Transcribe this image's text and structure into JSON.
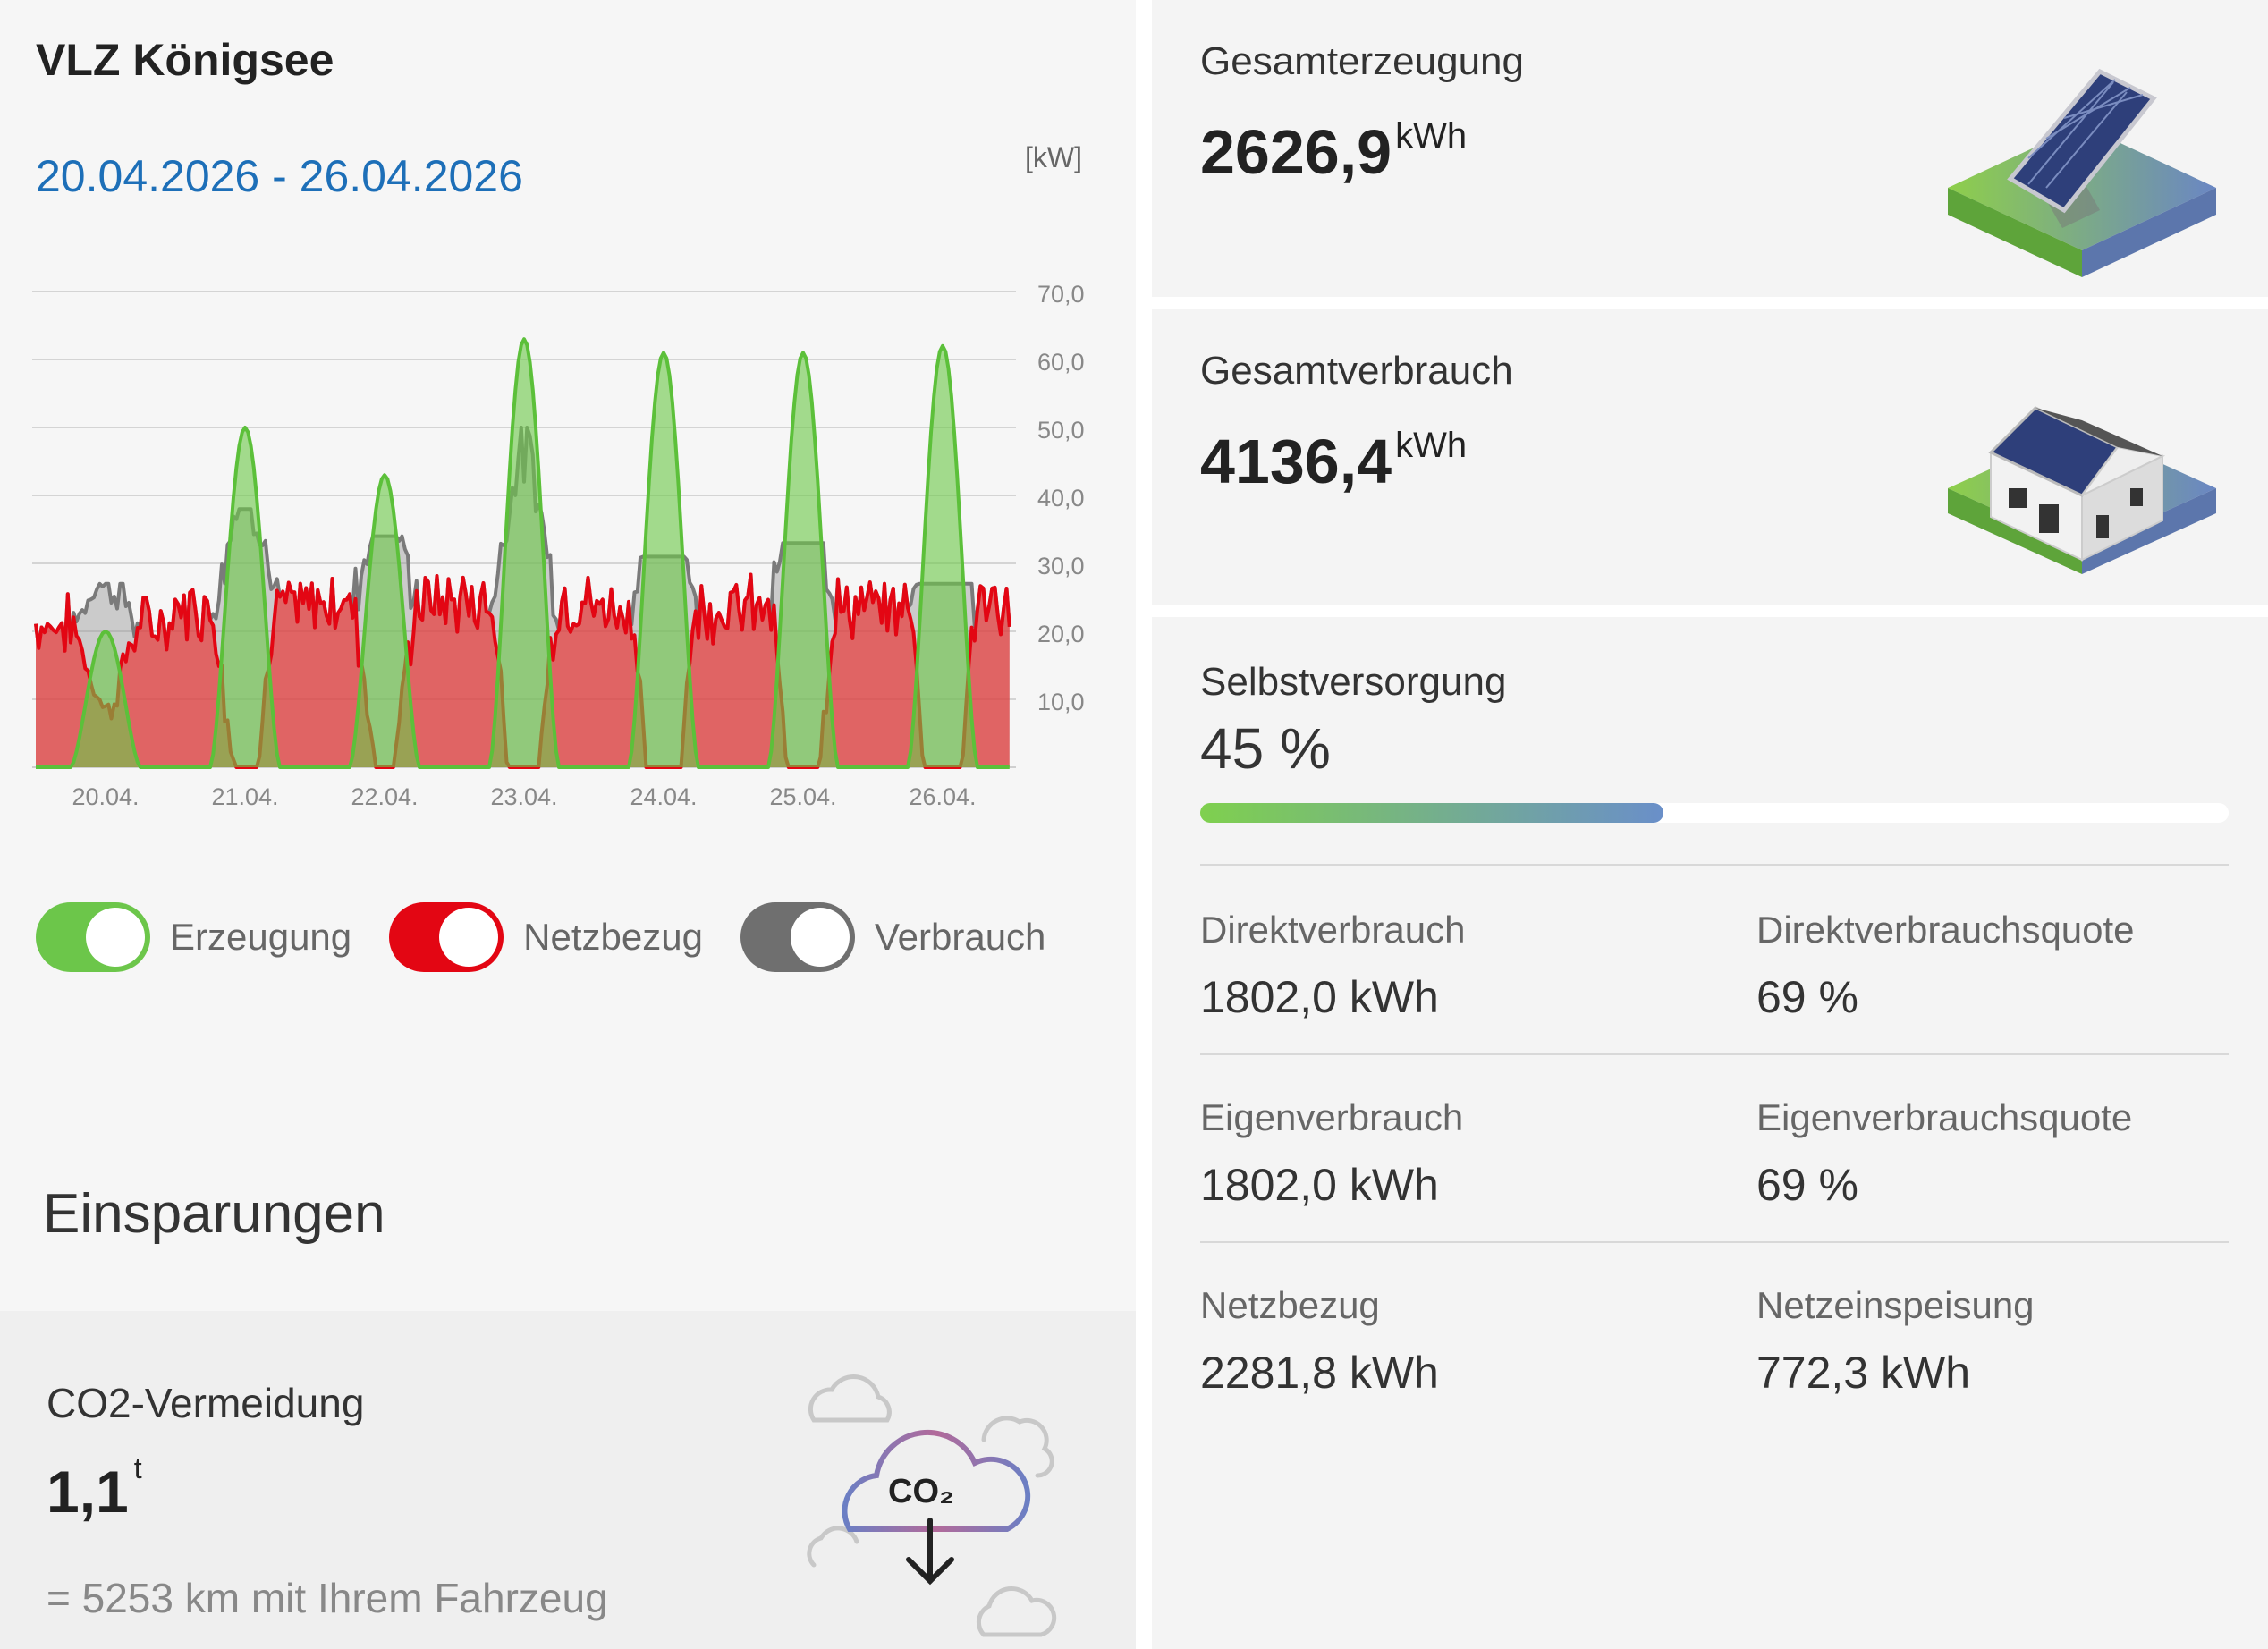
{
  "site": {
    "title": "VLZ Königsee"
  },
  "chart": {
    "date_range": "20.04.2026 - 26.04.2026",
    "unit": "[kW]",
    "y_ticks": [
      "70,0",
      "60,0",
      "50,0",
      "40,0",
      "30,0",
      "20,0",
      "10,0"
    ],
    "x_ticks": [
      "20.04.",
      "21.04.",
      "22.04.",
      "23.04.",
      "24.04.",
      "25.04.",
      "26.04."
    ]
  },
  "chart_data": {
    "type": "area",
    "title": "",
    "xlabel": "",
    "ylabel": "[kW]",
    "ylim": [
      0,
      70
    ],
    "categories": [
      "20.04.",
      "21.04.",
      "22.04.",
      "23.04.",
      "24.04.",
      "25.04.",
      "26.04."
    ],
    "legend": [
      "Erzeugung",
      "Netzbezug",
      "Verbrauch"
    ],
    "series": [
      {
        "name": "Erzeugung",
        "color": "#6cc64a",
        "daily_peak_kw": [
          20,
          50,
          43,
          63,
          61,
          61,
          62
        ]
      },
      {
        "name": "Netzbezug",
        "color": "#e30613",
        "daily_peak_kw": [
          22,
          25,
          26,
          26,
          25,
          25,
          25
        ]
      },
      {
        "name": "Verbrauch",
        "color": "#777777",
        "daily_peak_kw": [
          27,
          38,
          34,
          50,
          31,
          33,
          27
        ]
      }
    ]
  },
  "legend": {
    "items": [
      {
        "label": "Erzeugung",
        "color": "#6cc64a",
        "on": true
      },
      {
        "label": "Netzbezug",
        "color": "#e30613",
        "on": true
      },
      {
        "label": "Verbrauch",
        "color": "#6f6f6f",
        "on": true
      }
    ]
  },
  "savings": {
    "title": "Einsparungen",
    "co2_title": "CO2-Vermeidung",
    "co2_value": "1,1",
    "co2_unit": "t",
    "co2_equivalent": "= 5253 km mit Ihrem Fahrzeug",
    "co2_label": "CO₂"
  },
  "generation": {
    "title": "Gesamterzeugung",
    "value": "2626,9",
    "unit": "kWh"
  },
  "consumption": {
    "title": "Gesamtverbrauch",
    "value": "4136,4",
    "unit": "kWh"
  },
  "self_supply": {
    "title": "Selbstversorgung",
    "value": "45 %",
    "fraction": 0.45
  },
  "metrics": {
    "direct_consumption": {
      "label": "Direktverbrauch",
      "value": "1802,0 kWh"
    },
    "direct_consumption_rate": {
      "label": "Direktverbrauchsquote",
      "value": "69 %"
    },
    "own_consumption": {
      "label": "Eigenverbrauch",
      "value": "1802,0 kWh"
    },
    "own_consumption_rate": {
      "label": "Eigenverbrauchsquote",
      "value": "69 %"
    },
    "grid_supply": {
      "label": "Netzbezug",
      "value": "2281,8 kWh"
    },
    "grid_feed_in": {
      "label": "Netzeinspeisung",
      "value": "772,3 kWh"
    }
  }
}
